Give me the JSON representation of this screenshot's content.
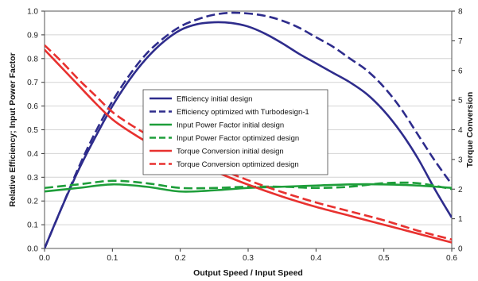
{
  "chart_data": {
    "type": "line",
    "xlabel": "Output Speed / Input Speed",
    "ylabel_left": "Relative Efficiency; Input Power Factor",
    "ylabel_right": "Torque Conversion",
    "xlim": [
      0.0,
      0.6
    ],
    "ylim_left": [
      0.0,
      1.0
    ],
    "ylim_right": [
      0,
      8
    ],
    "x_ticks": [
      "0.0",
      "0.1",
      "0.2",
      "0.3",
      "0.4",
      "0.5",
      "0.6"
    ],
    "y_left_ticks": [
      "0.0",
      "0.1",
      "0.2",
      "0.3",
      "0.4",
      "0.5",
      "0.6",
      "0.7",
      "0.8",
      "0.9",
      "1.0"
    ],
    "y_right_ticks": [
      "0",
      "1",
      "2",
      "3",
      "4",
      "5",
      "6",
      "7",
      "8"
    ],
    "grid": "horizontal",
    "legend_position": "center",
    "series": [
      {
        "name": "Efficiency initial design",
        "axis": "left",
        "color": "#2e2c8c",
        "dash": "solid",
        "x": [
          0.0,
          0.025,
          0.05,
          0.075,
          0.1,
          0.125,
          0.15,
          0.175,
          0.2,
          0.225,
          0.25,
          0.275,
          0.3,
          0.325,
          0.35,
          0.375,
          0.4,
          0.425,
          0.45,
          0.475,
          0.5,
          0.525,
          0.55,
          0.575,
          0.6
        ],
        "values": [
          0.0,
          0.17,
          0.33,
          0.47,
          0.6,
          0.71,
          0.8,
          0.87,
          0.92,
          0.945,
          0.953,
          0.95,
          0.935,
          0.905,
          0.865,
          0.82,
          0.78,
          0.74,
          0.7,
          0.65,
          0.58,
          0.49,
          0.38,
          0.25,
          0.13
        ]
      },
      {
        "name": "Efficiency optimized with Turbodesign-1",
        "axis": "left",
        "color": "#2e2c8c",
        "dash": "dashed",
        "x": [
          0.0,
          0.025,
          0.05,
          0.075,
          0.1,
          0.125,
          0.15,
          0.175,
          0.2,
          0.225,
          0.25,
          0.275,
          0.3,
          0.325,
          0.35,
          0.375,
          0.4,
          0.425,
          0.45,
          0.475,
          0.5,
          0.525,
          0.55,
          0.575,
          0.6
        ],
        "values": [
          0.0,
          0.17,
          0.34,
          0.49,
          0.62,
          0.73,
          0.82,
          0.885,
          0.935,
          0.965,
          0.985,
          0.993,
          0.99,
          0.98,
          0.96,
          0.93,
          0.89,
          0.85,
          0.8,
          0.75,
          0.68,
          0.59,
          0.48,
          0.37,
          0.27
        ]
      },
      {
        "name": "Input Power Factor initial design",
        "axis": "left",
        "color": "#1e9e3a",
        "dash": "solid",
        "x": [
          0.0,
          0.05,
          0.1,
          0.15,
          0.2,
          0.25,
          0.3,
          0.35,
          0.4,
          0.45,
          0.5,
          0.55,
          0.6
        ],
        "values": [
          0.24,
          0.255,
          0.27,
          0.26,
          0.24,
          0.245,
          0.255,
          0.26,
          0.265,
          0.27,
          0.27,
          0.265,
          0.255
        ]
      },
      {
        "name": "Input Power Factor optimized design",
        "axis": "left",
        "color": "#1e9e3a",
        "dash": "dashed",
        "x": [
          0.0,
          0.05,
          0.1,
          0.15,
          0.2,
          0.25,
          0.3,
          0.35,
          0.4,
          0.45,
          0.5,
          0.55,
          0.6
        ],
        "values": [
          0.255,
          0.27,
          0.285,
          0.275,
          0.255,
          0.255,
          0.26,
          0.26,
          0.255,
          0.26,
          0.275,
          0.275,
          0.25
        ]
      },
      {
        "name": "Torque Conversion initial design",
        "axis": "right",
        "color": "#e8312f",
        "dash": "solid",
        "x": [
          0.0,
          0.025,
          0.05,
          0.075,
          0.1,
          0.125,
          0.15,
          0.175,
          0.2,
          0.25,
          0.3,
          0.35,
          0.4,
          0.45,
          0.5,
          0.55,
          0.6
        ],
        "values": [
          6.7,
          6.1,
          5.5,
          4.9,
          4.35,
          3.95,
          3.6,
          3.3,
          3.05,
          2.6,
          2.15,
          1.75,
          1.4,
          1.1,
          0.8,
          0.5,
          0.2
        ]
      },
      {
        "name": "Torque Conversion optimized design",
        "axis": "right",
        "color": "#e8312f",
        "dash": "dashed",
        "x": [
          0.0,
          0.025,
          0.05,
          0.075,
          0.1,
          0.125,
          0.15,
          0.175,
          0.2,
          0.25,
          0.3,
          0.35,
          0.4,
          0.45,
          0.5,
          0.55,
          0.6
        ],
        "values": [
          6.85,
          6.3,
          5.7,
          5.15,
          4.6,
          4.2,
          3.85,
          3.5,
          3.25,
          2.75,
          2.3,
          1.9,
          1.55,
          1.25,
          0.95,
          0.6,
          0.3
        ]
      }
    ]
  }
}
